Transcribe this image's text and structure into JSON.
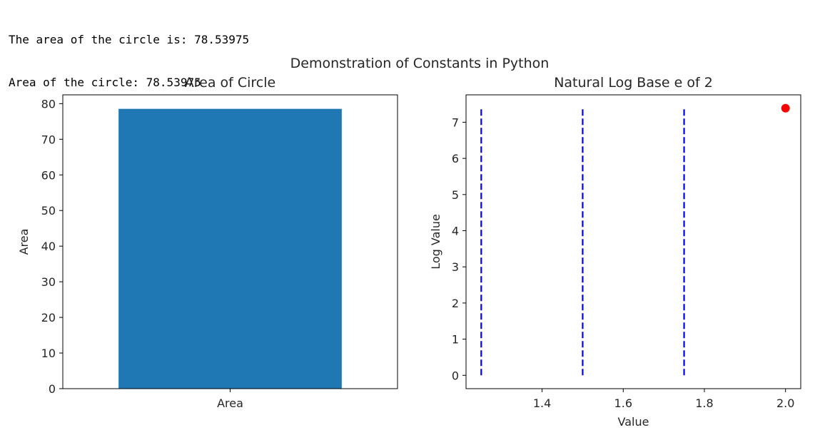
{
  "console": {
    "lines": [
      "The area of the circle is: 78.53975",
      "Area of the circle: 78.53975"
    ]
  },
  "figure": {
    "suptitle": "Demonstration of Constants in Python"
  },
  "chart_data": [
    {
      "type": "bar",
      "title": "Area of Circle",
      "xlabel": "",
      "ylabel": "Area",
      "categories": [
        "Area"
      ],
      "values": [
        78.53975
      ],
      "ylim": [
        0,
        82.47
      ],
      "yticks": [
        0,
        10,
        20,
        30,
        40,
        50,
        60,
        70,
        80
      ],
      "bar_color": "#1f77b4"
    },
    {
      "type": "scatter",
      "title": "Natural Log Base e of 2",
      "xlabel": "Value",
      "ylabel": "Log Value",
      "xlim": [
        1.2125,
        2.0375
      ],
      "ylim": [
        -0.369,
        7.758
      ],
      "xticks": [
        1.4,
        1.6,
        1.8,
        2.0
      ],
      "xtick_labels": [
        "1.4",
        "1.6",
        "1.8",
        "2.0"
      ],
      "yticks": [
        0,
        1,
        2,
        3,
        4,
        5,
        6,
        7
      ],
      "points": [
        {
          "x": 2.0,
          "y": 7.389,
          "color": "#ff0000"
        }
      ],
      "vlines": [
        {
          "x": 1.25,
          "ymin": 0,
          "ymax": 7.389,
          "color": "#0000ff",
          "style": "dashed"
        },
        {
          "x": 1.5,
          "ymin": 0,
          "ymax": 7.389,
          "color": "#0000ff",
          "style": "dashed"
        },
        {
          "x": 1.75,
          "ymin": 0,
          "ymax": 7.389,
          "color": "#0000ff",
          "style": "dashed"
        }
      ]
    }
  ]
}
